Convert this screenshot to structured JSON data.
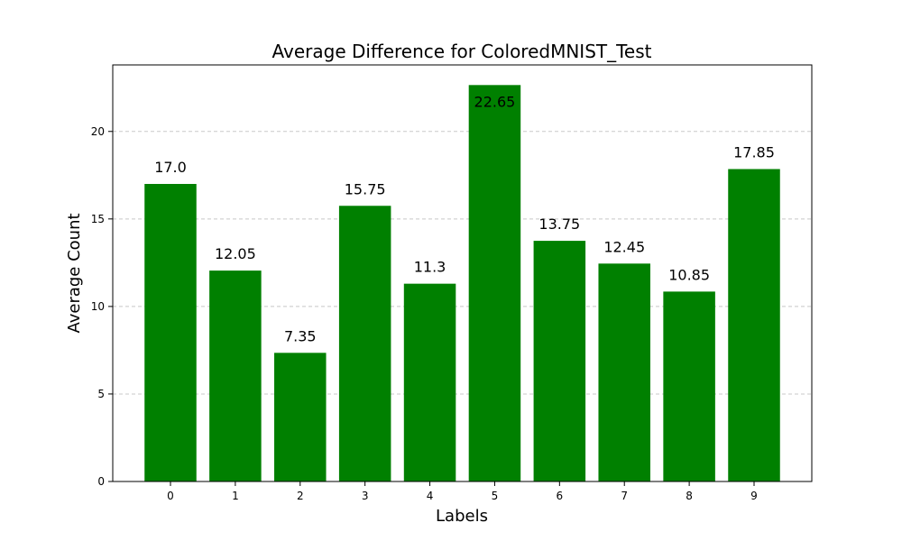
{
  "chart_data": {
    "type": "bar",
    "title": "Average Difference for ColoredMNIST_Test",
    "xlabel": "Labels",
    "ylabel": "Average Count",
    "categories": [
      "0",
      "1",
      "2",
      "3",
      "4",
      "5",
      "6",
      "7",
      "8",
      "9"
    ],
    "values": [
      17.0,
      12.05,
      7.35,
      15.75,
      11.3,
      22.65,
      13.75,
      12.45,
      10.85,
      17.85
    ],
    "value_labels": [
      "17.0",
      "12.05",
      "7.35",
      "15.75",
      "11.3",
      "22.65",
      "13.75",
      "12.45",
      "10.85",
      "17.85"
    ],
    "ylim": [
      0,
      23.8
    ],
    "yticks": [
      0,
      5,
      10,
      15,
      20
    ],
    "grid": "y-dashed",
    "bar_color": "#008000",
    "grid_color": "#c8c8c8"
  }
}
